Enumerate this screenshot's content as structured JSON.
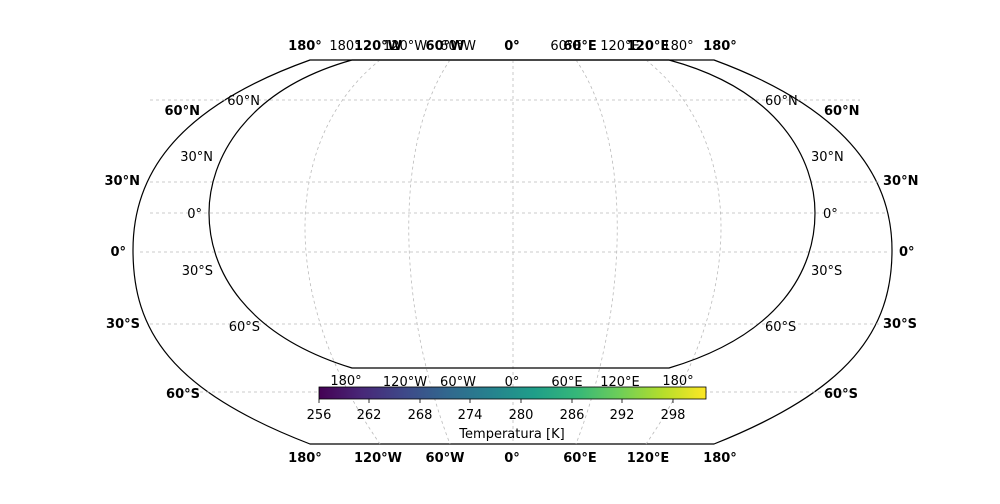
{
  "map": {
    "projection": "kavrayskiy-like",
    "outer_frame": {
      "lon_labels": [
        "180°",
        "120°W",
        "60°W",
        "0°",
        "60°E",
        "120°E",
        "180°"
      ],
      "lat_labels": [
        "60°N",
        "30°N",
        "0°",
        "30°S",
        "60°S"
      ]
    },
    "inner_frame": {
      "top_lon_labels": [
        "180°",
        "120°W",
        "60°W",
        "0°",
        "60°E",
        "120°E",
        "180°"
      ],
      "bottom_lon_labels": [
        "180°",
        "120°W",
        "60°W",
        "0°",
        "60°E",
        "120°E",
        "180°"
      ],
      "lat_labels": [
        "60°N",
        "30°N",
        "0°",
        "30°S",
        "60°S"
      ]
    },
    "gridline_style": "dashed-light-gray"
  },
  "colorbar": {
    "label": "Temperatura [K]",
    "ticks": [
      "256",
      "262",
      "268",
      "274",
      "280",
      "286",
      "292",
      "298"
    ],
    "range": [
      256,
      301
    ],
    "colormap": "viridis",
    "colors": [
      "#440154",
      "#482878",
      "#3e4989",
      "#31688e",
      "#26828e",
      "#1f9e89",
      "#35b779",
      "#6ece58",
      "#b5de2b",
      "#fde725"
    ]
  }
}
